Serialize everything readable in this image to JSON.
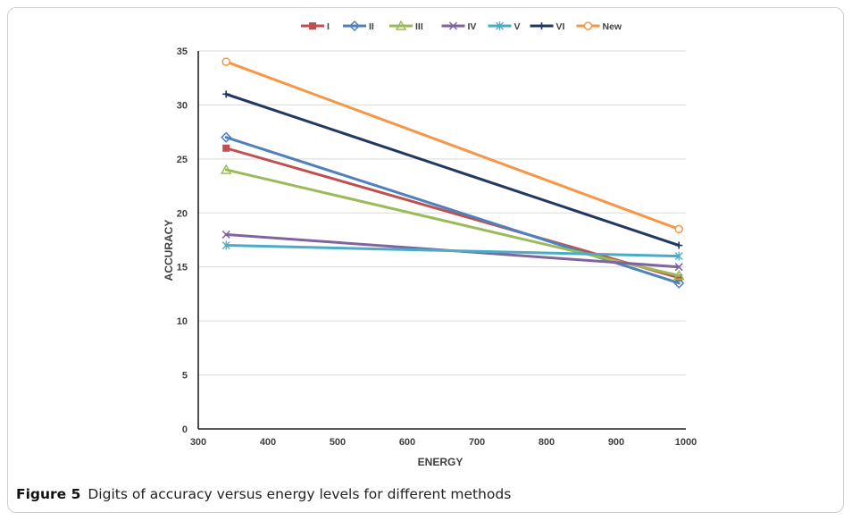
{
  "figure": {
    "label": "Figure 5",
    "caption": "Digits of accuracy versus energy levels for different methods"
  },
  "chart_data": {
    "type": "line",
    "xlabel": "ENERGY",
    "ylabel": "ACCURACY",
    "xlim": [
      300,
      1000
    ],
    "ylim": [
      0,
      35
    ],
    "xticks": [
      300,
      400,
      500,
      600,
      700,
      800,
      900,
      1000
    ],
    "yticks": [
      0,
      5,
      10,
      15,
      20,
      25,
      30,
      35
    ],
    "grid": "horizontal",
    "legend_position": "top",
    "x": [
      340,
      990
    ],
    "series": [
      {
        "name": "I",
        "values": [
          26,
          14
        ],
        "color": "#c0504d",
        "marker": "square"
      },
      {
        "name": "II",
        "values": [
          27,
          13.5
        ],
        "color": "#4f81bd",
        "marker": "diamond"
      },
      {
        "name": "III",
        "values": [
          24,
          14.2
        ],
        "color": "#9bbb59",
        "marker": "triangle"
      },
      {
        "name": "IV",
        "values": [
          18,
          15
        ],
        "color": "#8064a2",
        "marker": "x"
      },
      {
        "name": "V",
        "values": [
          17,
          16
        ],
        "color": "#4bacc6",
        "marker": "star"
      },
      {
        "name": "VI",
        "values": [
          31,
          17
        ],
        "color": "#1f3864",
        "marker": "plus"
      },
      {
        "name": "New",
        "values": [
          34,
          18.5
        ],
        "color": "#f79646",
        "marker": "circle"
      }
    ]
  }
}
